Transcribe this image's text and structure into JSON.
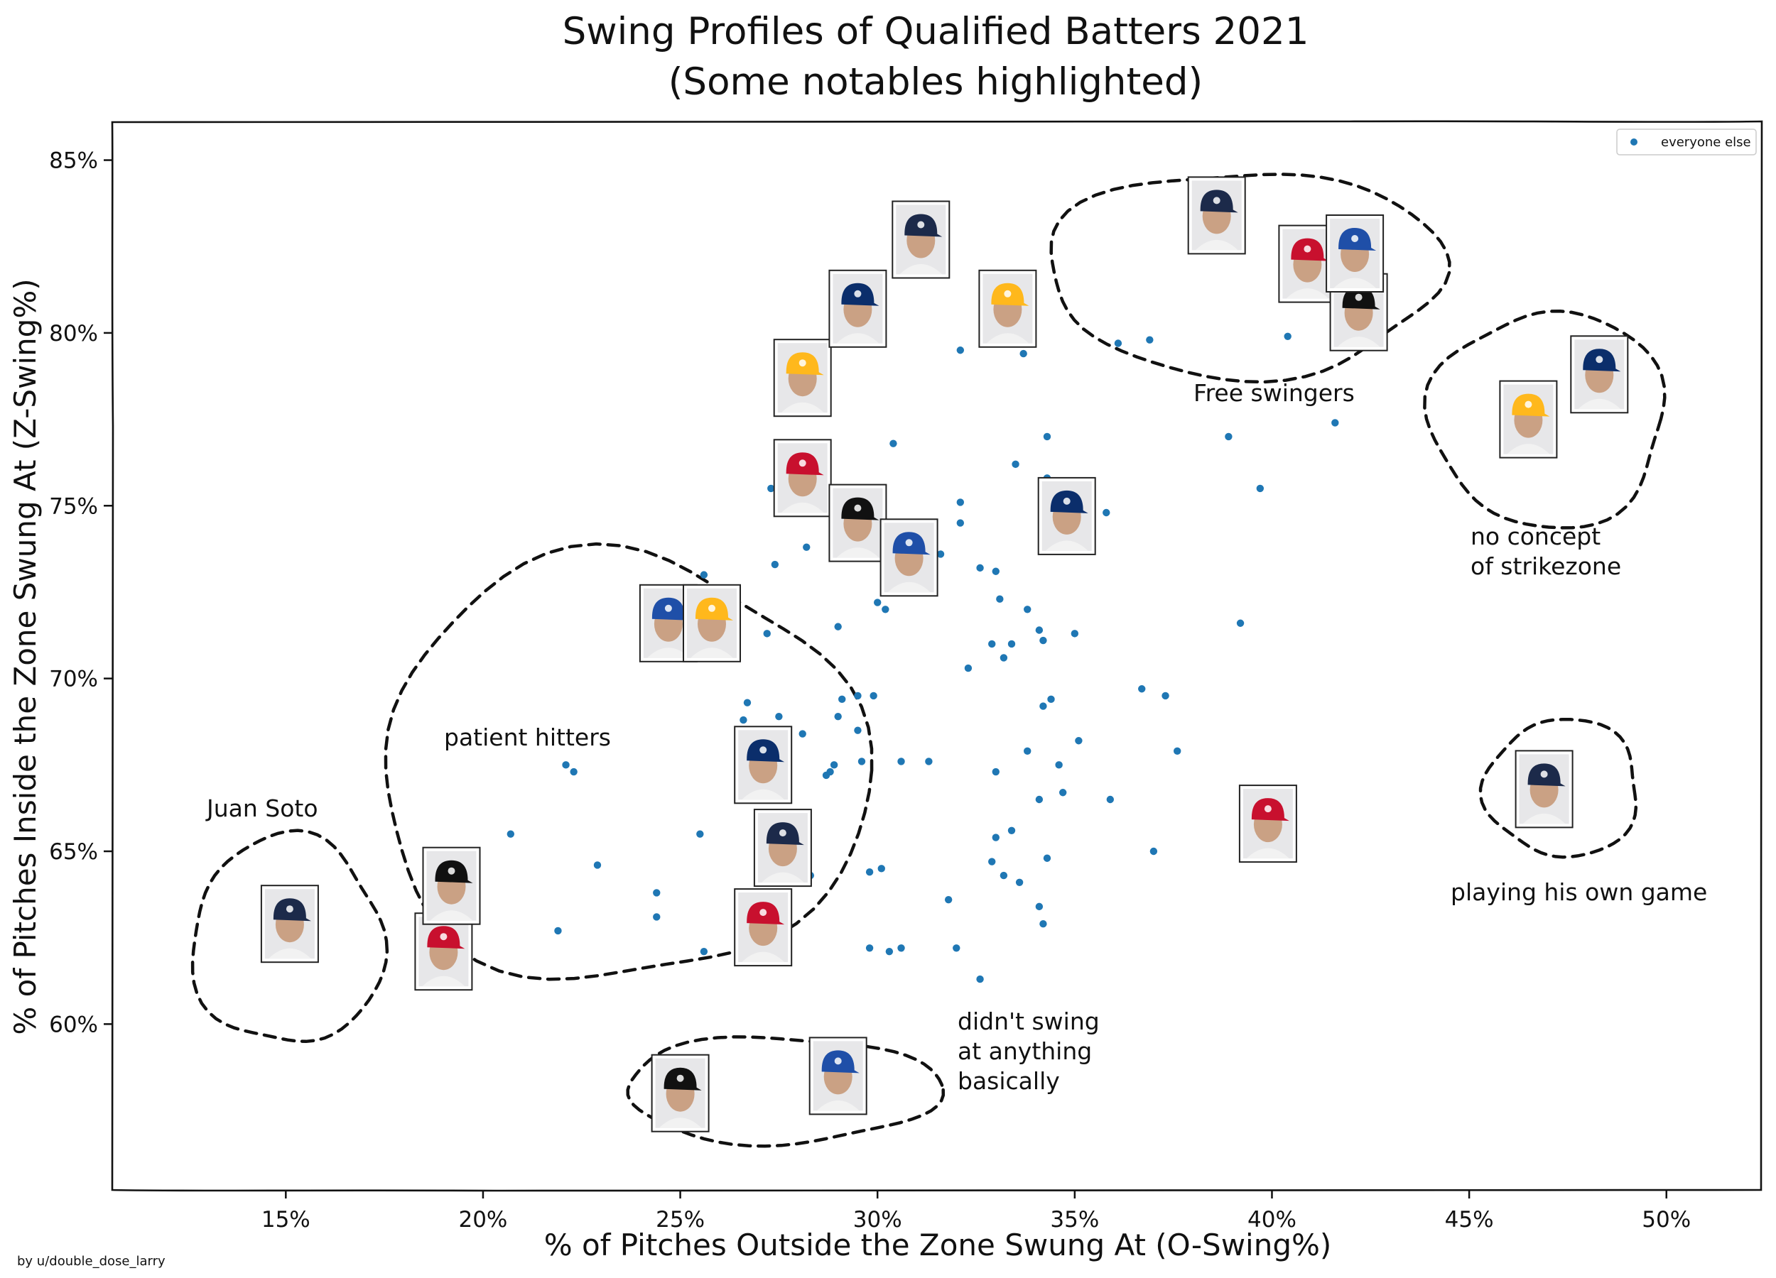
{
  "chart_data": {
    "type": "scatter",
    "title": [
      "Swing Profiles of Qualified Batters 2021",
      "(Some notables highlighted)"
    ],
    "xlabel": "% of Pitches Outside the Zone Swung At (O-Swing%)",
    "ylabel": "% of Pitches Inside the Zone Swung At (Z-Swing%)",
    "xlim": [
      10.6,
      52.4
    ],
    "ylim": [
      55.2,
      86.1
    ],
    "xticks": [
      15,
      20,
      25,
      30,
      35,
      40,
      45,
      50
    ],
    "xtick_labels": [
      "15%",
      "20%",
      "25%",
      "30%",
      "35%",
      "40%",
      "45%",
      "50%"
    ],
    "yticks": [
      60,
      65,
      70,
      75,
      80,
      85
    ],
    "ytick_labels": [
      "60%",
      "65%",
      "70%",
      "75%",
      "80%",
      "85%"
    ],
    "grid": false,
    "legend": {
      "placement": "top-right",
      "entries": [
        "everyone else"
      ]
    },
    "series": [
      {
        "name": "everyone else",
        "color": "#1f77b4",
        "points": [
          [
            36.1,
            79.7
          ],
          [
            36.9,
            79.8
          ],
          [
            40.4,
            79.9
          ],
          [
            41.6,
            77.4
          ],
          [
            38.9,
            77.0
          ],
          [
            39.7,
            75.5
          ],
          [
            39.2,
            71.6
          ],
          [
            34.3,
            77.0
          ],
          [
            33.5,
            76.2
          ],
          [
            35.8,
            74.8
          ],
          [
            34.3,
            75.8
          ],
          [
            30.4,
            76.8
          ],
          [
            27.3,
            75.5
          ],
          [
            32.1,
            75.1
          ],
          [
            32.1,
            74.5
          ],
          [
            28.2,
            73.8
          ],
          [
            27.4,
            73.3
          ],
          [
            31.6,
            73.6
          ],
          [
            32.6,
            73.2
          ],
          [
            33.0,
            73.1
          ],
          [
            33.1,
            72.3
          ],
          [
            33.8,
            72.0
          ],
          [
            30.0,
            72.2
          ],
          [
            30.2,
            72.0
          ],
          [
            29.0,
            71.5
          ],
          [
            34.1,
            71.4
          ],
          [
            34.2,
            71.1
          ],
          [
            35.0,
            71.3
          ],
          [
            32.9,
            71.0
          ],
          [
            33.4,
            71.0
          ],
          [
            33.2,
            70.6
          ],
          [
            32.3,
            70.3
          ],
          [
            25.6,
            73.0
          ],
          [
            27.2,
            71.3
          ],
          [
            26.7,
            69.3
          ],
          [
            27.5,
            68.9
          ],
          [
            29.1,
            69.4
          ],
          [
            29.5,
            69.5
          ],
          [
            29.9,
            69.5
          ],
          [
            29.0,
            68.9
          ],
          [
            29.5,
            68.5
          ],
          [
            28.1,
            68.4
          ],
          [
            26.6,
            68.8
          ],
          [
            36.7,
            69.7
          ],
          [
            37.3,
            69.5
          ],
          [
            34.2,
            69.2
          ],
          [
            34.4,
            69.4
          ],
          [
            35.1,
            68.2
          ],
          [
            37.6,
            67.9
          ],
          [
            33.8,
            67.9
          ],
          [
            34.6,
            67.5
          ],
          [
            29.6,
            67.6
          ],
          [
            30.6,
            67.6
          ],
          [
            31.3,
            67.6
          ],
          [
            28.9,
            67.5
          ],
          [
            28.7,
            67.2
          ],
          [
            28.8,
            67.3
          ],
          [
            33.0,
            67.3
          ],
          [
            34.1,
            66.5
          ],
          [
            34.7,
            66.7
          ],
          [
            35.9,
            66.5
          ],
          [
            37.0,
            65.0
          ],
          [
            33.0,
            65.4
          ],
          [
            33.4,
            65.6
          ],
          [
            34.3,
            64.8
          ],
          [
            32.9,
            64.7
          ],
          [
            33.2,
            64.3
          ],
          [
            33.6,
            64.1
          ],
          [
            34.1,
            63.4
          ],
          [
            34.2,
            62.9
          ],
          [
            31.8,
            63.6
          ],
          [
            32.0,
            62.2
          ],
          [
            32.6,
            61.3
          ],
          [
            29.8,
            64.4
          ],
          [
            30.1,
            64.5
          ],
          [
            29.8,
            62.2
          ],
          [
            30.3,
            62.1
          ],
          [
            30.6,
            62.2
          ],
          [
            28.3,
            64.3
          ],
          [
            25.6,
            62.1
          ],
          [
            25.5,
            65.5
          ],
          [
            24.4,
            63.8
          ],
          [
            24.4,
            63.1
          ],
          [
            22.9,
            64.6
          ],
          [
            21.9,
            62.7
          ],
          [
            20.7,
            65.5
          ],
          [
            22.1,
            67.5
          ],
          [
            22.3,
            67.3
          ],
          [
            32.1,
            79.5
          ],
          [
            33.7,
            79.4
          ]
        ]
      }
    ],
    "highlighted_players": [
      {
        "x": 15.1,
        "y": 62.9
      },
      {
        "x": 19.0,
        "y": 62.1
      },
      {
        "x": 19.2,
        "y": 64.0
      },
      {
        "x": 24.7,
        "y": 71.6
      },
      {
        "x": 25.8,
        "y": 71.6
      },
      {
        "x": 27.1,
        "y": 67.5
      },
      {
        "x": 27.6,
        "y": 65.1
      },
      {
        "x": 27.1,
        "y": 62.8
      },
      {
        "x": 25.0,
        "y": 58.0
      },
      {
        "x": 29.0,
        "y": 58.5
      },
      {
        "x": 28.1,
        "y": 78.7
      },
      {
        "x": 29.5,
        "y": 80.7
      },
      {
        "x": 31.1,
        "y": 82.7
      },
      {
        "x": 28.1,
        "y": 75.8
      },
      {
        "x": 29.5,
        "y": 74.5
      },
      {
        "x": 30.8,
        "y": 73.5
      },
      {
        "x": 33.3,
        "y": 80.7
      },
      {
        "x": 34.8,
        "y": 74.7
      },
      {
        "x": 38.6,
        "y": 83.4
      },
      {
        "x": 40.9,
        "y": 82.0
      },
      {
        "x": 42.2,
        "y": 80.6
      },
      {
        "x": 42.1,
        "y": 82.3
      },
      {
        "x": 46.5,
        "y": 77.5
      },
      {
        "x": 48.3,
        "y": 78.8
      },
      {
        "x": 46.9,
        "y": 66.8
      },
      {
        "x": 39.9,
        "y": 65.8
      }
    ],
    "annotations": [
      {
        "text": "Juan Soto"
      },
      {
        "text": "patient hitters"
      },
      {
        "text": "Free swingers"
      },
      {
        "text": "no concept\nof strikezone"
      },
      {
        "text": "playing his own game"
      },
      {
        "text": "didn't swing\nat anything\nbasically"
      }
    ]
  },
  "credit": "by u/double_dose_larry",
  "colors": {
    "dots": "#1f77b4",
    "cap_colors": [
      "#1c2a4a",
      "#c8102e",
      "#111111",
      "#1f4fa8",
      "#ffb81c",
      "#0b2e6b"
    ]
  }
}
